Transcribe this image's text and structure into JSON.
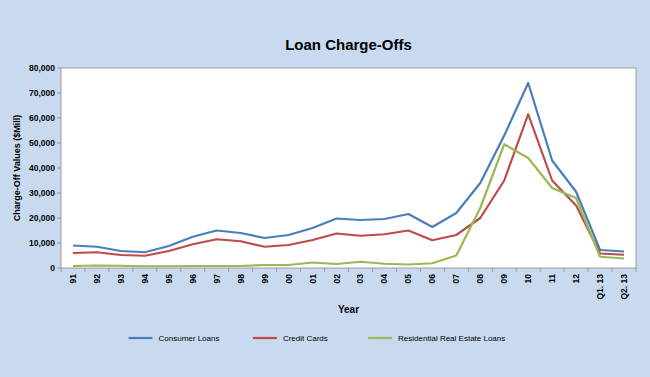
{
  "chart_data": {
    "type": "line",
    "title": "Loan Charge-Offs",
    "x_label": "Year",
    "y_label": "Charge-Off Values ($Mill)",
    "categories": [
      "91",
      "92",
      "93",
      "94",
      "95",
      "96",
      "97",
      "98",
      "99",
      "00",
      "01",
      "02",
      "03",
      "04",
      "05",
      "06",
      "07",
      "08",
      "09",
      "10",
      "11",
      "12",
      "Q1. 13",
      "Q2. 13"
    ],
    "series": [
      {
        "name": "Consumer Loans",
        "color": "#4a7ebb",
        "values": [
          9000,
          8500,
          6800,
          6300,
          8800,
          12500,
          15000,
          14000,
          12000,
          13200,
          16000,
          19800,
          19200,
          19600,
          21600,
          16400,
          22000,
          34000,
          53000,
          74000,
          43000,
          30500,
          7200,
          6600
        ]
      },
      {
        "name": "Credit Cards",
        "color": "#be4b48",
        "values": [
          6000,
          6300,
          5200,
          4900,
          6800,
          9500,
          11500,
          10700,
          8500,
          9200,
          11200,
          13800,
          12900,
          13500,
          15000,
          11100,
          13200,
          20000,
          35000,
          61500,
          35000,
          25000,
          5800,
          5300
        ]
      },
      {
        "name": "Residential Real Estate Loans",
        "color": "#98b954",
        "values": [
          800,
          1000,
          900,
          700,
          700,
          800,
          800,
          800,
          1200,
          1200,
          2200,
          1600,
          2500,
          1700,
          1400,
          1900,
          5000,
          24000,
          49500,
          44000,
          32000,
          28000,
          4500,
          3800
        ]
      }
    ],
    "ylim": [
      0,
      80000
    ],
    "yticks": [
      0,
      {
        "value": 10000,
        "label": "10,000"
      },
      {
        "value": 20000,
        "label": "20,000"
      },
      {
        "value": 30000,
        "label": "30,000"
      },
      {
        "value": 40000,
        "label": "40,000"
      },
      {
        "value": 50000,
        "label": "50,000"
      },
      {
        "value": 60000,
        "label": "60,000"
      },
      {
        "value": 70000,
        "label": "70,000"
      },
      {
        "value": 80000,
        "label": "80,000"
      }
    ],
    "grid": false,
    "legend": "bottom"
  }
}
